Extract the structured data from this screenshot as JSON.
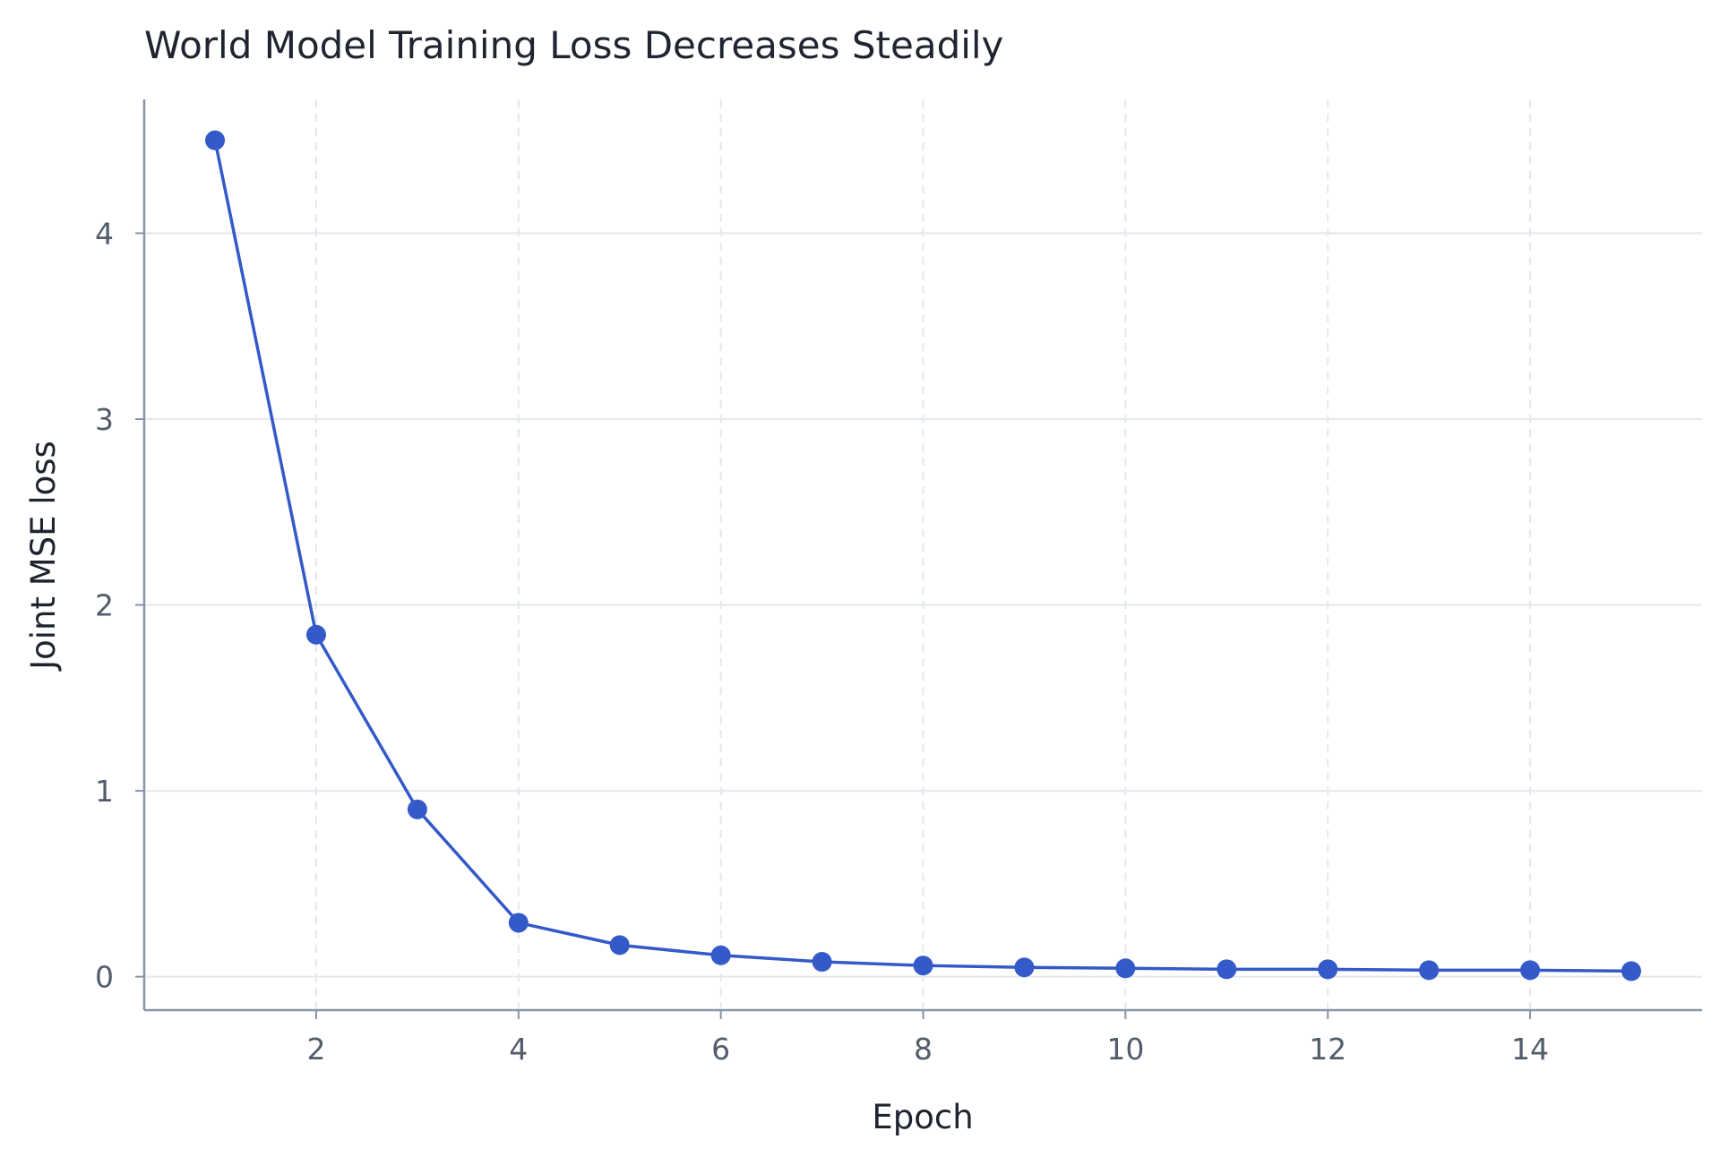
{
  "chart_data": {
    "type": "line",
    "title": "World Model Training Loss Decreases Steadily",
    "xlabel": "Epoch",
    "ylabel": "Joint MSE loss",
    "xlim": [
      0.3,
      15.7
    ],
    "ylim": [
      -0.18,
      4.72
    ],
    "x_ticks": [
      2,
      4,
      6,
      8,
      10,
      12,
      14
    ],
    "y_ticks": [
      0,
      1,
      2,
      3,
      4
    ],
    "grid": true,
    "legend": false,
    "series": [
      {
        "x": [
          1,
          2,
          3,
          4,
          5,
          6,
          7,
          8,
          9,
          10,
          11,
          12,
          13,
          14,
          15
        ],
        "values": [
          4.5,
          1.84,
          0.9,
          0.29,
          0.17,
          0.115,
          0.08,
          0.06,
          0.05,
          0.045,
          0.04,
          0.04,
          0.035,
          0.035,
          0.03
        ],
        "color": "#3459c8"
      }
    ],
    "colors": {
      "line": "#3459c8",
      "axis": "#8795a6",
      "grid": "#e3e8ee",
      "tick_text": "#525c6b",
      "text": "#1f2430"
    }
  }
}
